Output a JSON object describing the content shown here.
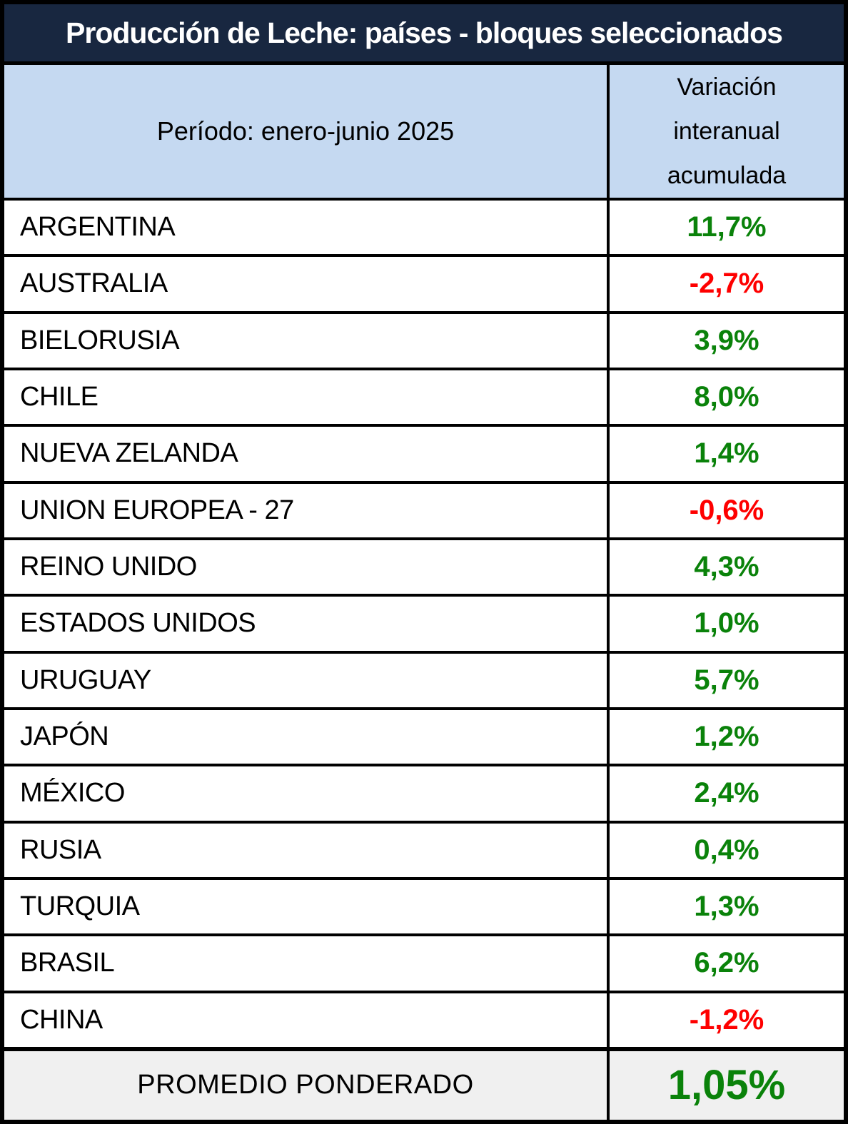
{
  "title": "Producción de Leche: países - bloques seleccionados",
  "header": {
    "period": "Período: enero-junio 2025",
    "value_column": [
      "Variación",
      "interanual",
      "acumulada"
    ]
  },
  "rows": [
    {
      "country": "ARGENTINA",
      "value": "11,7%",
      "trend": "positive"
    },
    {
      "country": "AUSTRALIA",
      "value": "-2,7%",
      "trend": "negative"
    },
    {
      "country": "BIELORUSIA",
      "value": "3,9%",
      "trend": "positive"
    },
    {
      "country": "CHILE",
      "value": "8,0%",
      "trend": "positive"
    },
    {
      "country": "NUEVA ZELANDA",
      "value": "1,4%",
      "trend": "positive"
    },
    {
      "country": "UNION EUROPEA - 27",
      "value": "-0,6%",
      "trend": "negative"
    },
    {
      "country": "REINO UNIDO",
      "value": "4,3%",
      "trend": "positive"
    },
    {
      "country": "ESTADOS UNIDOS",
      "value": "1,0%",
      "trend": "positive"
    },
    {
      "country": "URUGUAY",
      "value": "5,7%",
      "trend": "positive"
    },
    {
      "country": "JAPÓN",
      "value": "1,2%",
      "trend": "positive"
    },
    {
      "country": "MÉXICO",
      "value": "2,4%",
      "trend": "positive"
    },
    {
      "country": "RUSIA",
      "value": "0,4%",
      "trend": "positive"
    },
    {
      "country": "TURQUIA",
      "value": "1,3%",
      "trend": "positive"
    },
    {
      "country": "BRASIL",
      "value": "6,2%",
      "trend": "positive"
    },
    {
      "country": "CHINA",
      "value": "-1,2%",
      "trend": "negative"
    }
  ],
  "footer": {
    "label": "PROMEDIO PONDERADO",
    "value": "1,05%",
    "trend": "positive"
  },
  "colors": {
    "title_bg": "#182740",
    "title_text": "#ffffff",
    "header_bg": "#c5d9f1",
    "footer_bg": "#f0f0f0",
    "positive": "#0a820a",
    "negative": "#fe0000",
    "border": "#000000"
  },
  "chart_data": {
    "type": "table",
    "title": "Producción de Leche: países - bloques seleccionados",
    "subtitle": "Período: enero-junio 2025",
    "value_column_label": "Variación interanual acumulada",
    "categories": [
      "ARGENTINA",
      "AUSTRALIA",
      "BIELORUSIA",
      "CHILE",
      "NUEVA ZELANDA",
      "UNION EUROPEA - 27",
      "REINO UNIDO",
      "ESTADOS UNIDOS",
      "URUGUAY",
      "JAPÓN",
      "MÉXICO",
      "RUSIA",
      "TURQUIA",
      "BRASIL",
      "CHINA"
    ],
    "values": [
      11.7,
      -2.7,
      3.9,
      8.0,
      1.4,
      -0.6,
      4.3,
      1.0,
      5.7,
      1.2,
      2.4,
      0.4,
      1.3,
      6.2,
      -1.2
    ],
    "unit": "%",
    "weighted_average": 1.05,
    "weighted_average_label": "PROMEDIO PONDERADO"
  }
}
